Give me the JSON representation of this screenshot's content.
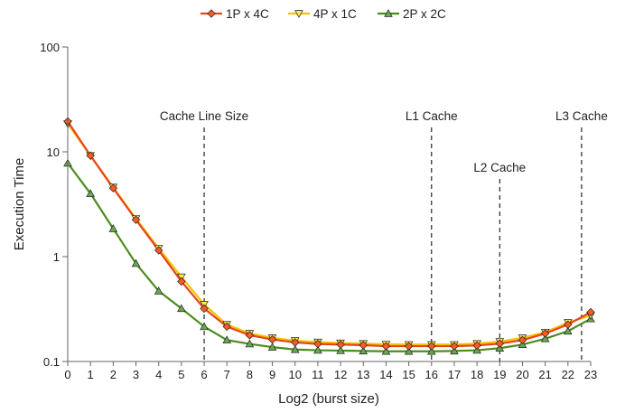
{
  "chart_data": {
    "type": "line",
    "xlabel": "Log2 (burst size)",
    "ylabel": "Execution Time",
    "x": [
      0,
      1,
      2,
      3,
      4,
      5,
      6,
      7,
      8,
      9,
      10,
      11,
      12,
      13,
      14,
      15,
      16,
      17,
      18,
      19,
      20,
      21,
      22,
      23
    ],
    "xlim": [
      0,
      23
    ],
    "ylim": [
      0.1,
      100
    ],
    "yscale": "log",
    "yticks": [
      {
        "value": 0.1,
        "label": "0.1"
      },
      {
        "value": 1,
        "label": "1"
      },
      {
        "value": 10,
        "label": "10"
      },
      {
        "value": 100,
        "label": "100"
      }
    ],
    "grid": false,
    "legend_position": "top",
    "series": [
      {
        "name": "1P x 4C",
        "color": "#e8451c",
        "marker_fill": "#ff5a1f",
        "marker": "diamond",
        "values": [
          19.5,
          9.2,
          4.5,
          2.25,
          1.15,
          0.58,
          0.32,
          0.215,
          0.178,
          0.162,
          0.152,
          0.147,
          0.145,
          0.143,
          0.14,
          0.14,
          0.14,
          0.14,
          0.142,
          0.148,
          0.16,
          0.185,
          0.225,
          0.295
        ]
      },
      {
        "name": "4P x 1C",
        "color": "#f2c500",
        "marker_fill": "#ffe94a",
        "marker": "triangle-down",
        "values": [
          18.5,
          9.2,
          4.6,
          2.3,
          1.2,
          0.64,
          0.35,
          0.225,
          0.185,
          0.168,
          0.158,
          0.153,
          0.15,
          0.148,
          0.146,
          0.145,
          0.145,
          0.145,
          0.148,
          0.155,
          0.168,
          0.19,
          0.235,
          0.275
        ]
      },
      {
        "name": "2P x 2C",
        "color": "#4d8c1f",
        "marker_fill": "#6aa84f",
        "marker": "triangle-up",
        "values": [
          7.8,
          4.0,
          1.85,
          0.86,
          0.47,
          0.32,
          0.215,
          0.16,
          0.147,
          0.137,
          0.13,
          0.128,
          0.127,
          0.126,
          0.125,
          0.125,
          0.125,
          0.126,
          0.128,
          0.134,
          0.145,
          0.165,
          0.195,
          0.255
        ]
      }
    ],
    "annotations": [
      {
        "x": 6,
        "label": "Cache Line Size",
        "level": "high"
      },
      {
        "x": 16,
        "label": "L1 Cache",
        "level": "high"
      },
      {
        "x": 19,
        "label": "L2 Cache",
        "level": "low"
      },
      {
        "x": 22.6,
        "label": "L3 Cache",
        "level": "high"
      }
    ]
  }
}
